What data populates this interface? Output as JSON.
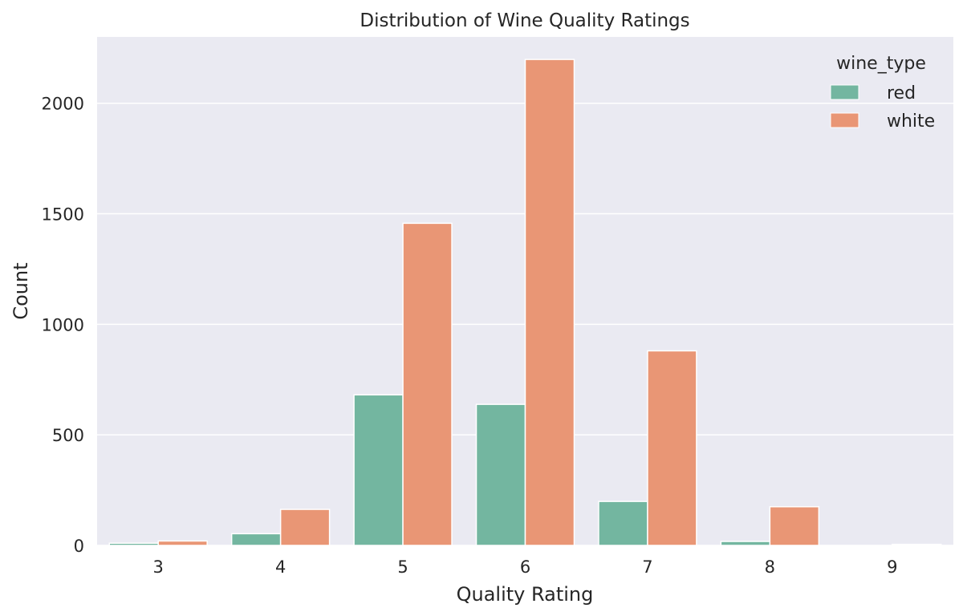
{
  "chart_data": {
    "type": "bar",
    "title": "Distribution of Wine Quality Ratings",
    "xlabel": "Quality Rating",
    "ylabel": "Count",
    "categories": [
      "3",
      "4",
      "5",
      "6",
      "7",
      "8",
      "9"
    ],
    "series": [
      {
        "name": "red",
        "color": "#73b6a0",
        "values": [
          10,
          53,
          681,
          638,
          199,
          18,
          0
        ]
      },
      {
        "name": "white",
        "color": "#e99675",
        "values": [
          20,
          163,
          1457,
          2198,
          880,
          175,
          5
        ]
      }
    ],
    "ylim": [
      0,
      2300
    ],
    "yticks": [
      0,
      500,
      1000,
      1500,
      2000
    ],
    "grid": true,
    "background_color": "#eaeaf2",
    "legend": {
      "title": "wine_type",
      "position": "top-right"
    }
  }
}
